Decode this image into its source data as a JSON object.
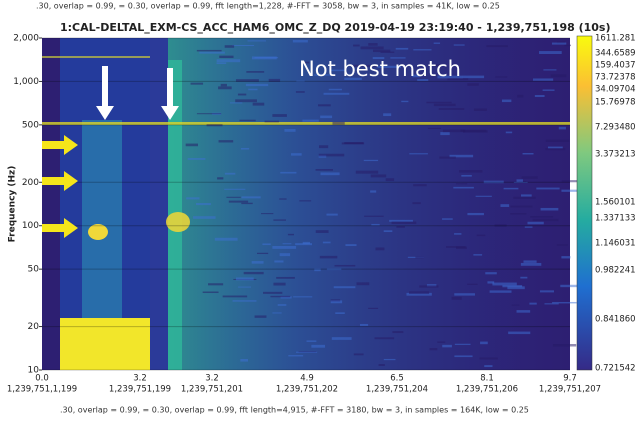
{
  "chart_data": {
    "type": "spectrogram",
    "top_caption": ".30, overlap = 0.99, = 0.30, overlap = 0.99, fft length=1,228, #-FFT = 3058, bw = 3, in samples = 41K, low = 0.25",
    "title": "1:CAL-DELTAL_EXM-CS_ACC_HAM6_OMC_Z_DQ 2019-04-19 23:19:40 - 1,239,751,198 (10s)",
    "ylabel": "Frequency (Hz)",
    "ylog": true,
    "ylim": [
      10,
      2000
    ],
    "yticks": [
      10,
      20,
      50,
      100,
      200,
      500,
      {
        "value": 1000,
        "label": "1,000"
      },
      {
        "value": 2000,
        "label": "2,000"
      }
    ],
    "grid": true,
    "x_labels": [
      {
        "time": "0.0",
        "gps": "1,239,751,1,199"
      },
      {
        "time": "3.2",
        "gps": "1,239,751,199"
      },
      {
        "time": "3.2",
        "gps": "1,239,751,201"
      },
      {
        "time": "4.9",
        "gps": "1,239,751,202"
      },
      {
        "time": "6.5",
        "gps": "1,239,751,204"
      },
      {
        "time": "8.1",
        "gps": "1,239,751,206"
      },
      {
        "time": "9.7",
        "gps": "1,239,751,207"
      }
    ],
    "colorbar_labels": [
      "1611.281",
      "344.6589",
      "159.4037",
      "73.72378",
      "34.09704",
      "15.76978",
      "7.293480",
      "3.373213",
      "1.560101",
      "1.337133",
      "1.146031",
      "0.982241",
      "0.841860",
      "0.721542"
    ],
    "annotation": "Not best match",
    "bottom_caption": ".30, overlap = 0.99, = 0.30, overlap = 0.99, fft length=4,915, #-FFT = 3180, bw = 3, in samples = 164K, low = 0.25"
  }
}
